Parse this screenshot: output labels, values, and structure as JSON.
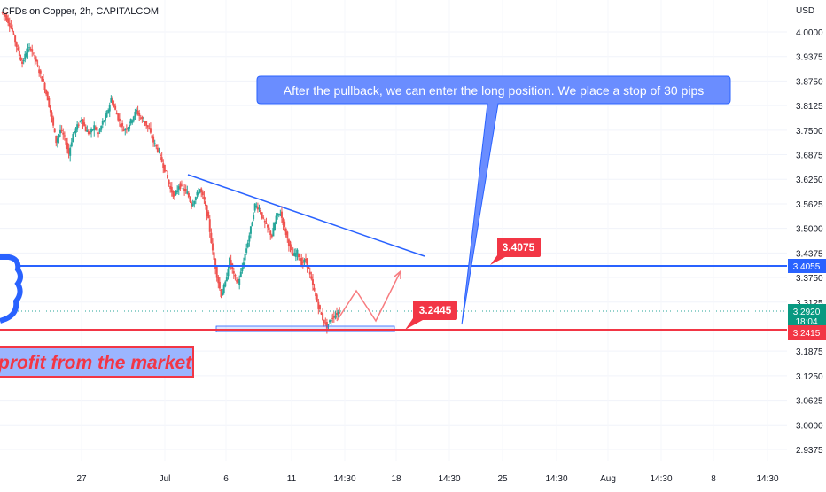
{
  "header": {
    "symbol_title": "CFDs on Copper, 2h, CAPITALCOM"
  },
  "axis": {
    "currency": "USD",
    "countdown": "18:04"
  },
  "annotations": {
    "callout_text": "After the pullback, we can enter the long position. We place a stop of 30 pips",
    "target_label": "3.4075",
    "entry_label": "3.2445",
    "banner_text": "profit from the market"
  },
  "colors": {
    "up_candle": "#26a69a",
    "down_candle": "#ef5350",
    "resistance_line": "#2962ff",
    "stop_line": "#f23645",
    "callout_fill": "#6a8dff",
    "label_fill": "#f23645",
    "current_price_fill": "#089981"
  },
  "chart_data": {
    "type": "line",
    "title": "CFDs on Copper, 2h, CAPITALCOM",
    "ylabel": "USD",
    "ylim": [
      2.9,
      4.1
    ],
    "y_ticks": [
      "4.0000",
      "3.9375",
      "3.8750",
      "3.8125",
      "3.7500",
      "3.6875",
      "3.6250",
      "3.5625",
      "3.5000",
      "3.4375",
      "3.3750",
      "3.3125",
      "3.1875",
      "3.1250",
      "3.0625",
      "3.0000",
      "2.9375"
    ],
    "x_ticks": [
      "27",
      "Jul",
      "6",
      "11",
      "14:30",
      "18",
      "14:30",
      "25",
      "14:30",
      "Aug",
      "14:30",
      "8",
      "14:30"
    ],
    "price_labels": [
      {
        "text": "3.4055",
        "value": 3.4055,
        "kind": "resistance"
      },
      {
        "text": "3.2920",
        "value": 3.292,
        "kind": "current"
      },
      {
        "text": "3.2415",
        "value": 3.2415,
        "kind": "stop"
      }
    ],
    "series": [
      {
        "values": [
          4.05,
          4.04,
          4.02,
          3.99,
          3.95,
          3.92,
          3.95,
          3.96,
          3.93,
          3.9,
          3.87,
          3.83,
          3.78,
          3.72,
          3.75,
          3.73,
          3.69,
          3.74,
          3.76,
          3.78,
          3.75,
          3.74,
          3.76,
          3.74,
          3.77,
          3.79,
          3.83,
          3.8,
          3.77,
          3.75,
          3.76,
          3.78,
          3.8,
          3.78,
          3.77,
          3.75,
          3.72,
          3.7,
          3.67,
          3.64,
          3.6,
          3.58,
          3.61,
          3.6,
          3.59,
          3.56,
          3.58,
          3.6,
          3.57,
          3.52,
          3.44,
          3.38,
          3.33,
          3.36,
          3.42,
          3.38,
          3.36,
          3.4,
          3.45,
          3.5,
          3.56,
          3.55,
          3.52,
          3.5,
          3.48,
          3.53,
          3.54,
          3.5,
          3.46,
          3.43,
          3.44,
          3.41,
          3.42,
          3.38,
          3.34,
          3.3,
          3.27,
          3.25,
          3.27,
          3.28,
          3.29
        ]
      }
    ]
  }
}
